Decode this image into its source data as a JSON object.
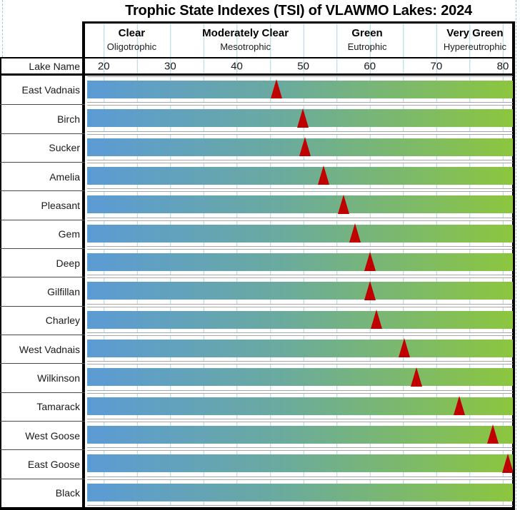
{
  "title": "Trophic State Indexes (TSI) of VLAWMO Lakes: 2024",
  "header": {
    "lake_name_label": "Lake Name",
    "categories": [
      {
        "label": "Clear",
        "sublabel": "Oligotrophic",
        "center_tsi": 24.2
      },
      {
        "label": "Moderately Clear",
        "sublabel": "Mesotrophic",
        "center_tsi": 41.3
      },
      {
        "label": "Green",
        "sublabel": "Eutrophic",
        "center_tsi": 59.6
      },
      {
        "label": "Very Green",
        "sublabel": "Hypereutrophic",
        "center_tsi": 75.8
      }
    ]
  },
  "chart_data": {
    "type": "scatter",
    "title": "Trophic State Indexes (TSI) of VLAWMO Lakes: 2024",
    "xlabel": "TSI",
    "x_ticks": [
      20,
      30,
      40,
      50,
      60,
      70,
      80
    ],
    "x_min": 17.5,
    "x_max": 81.5,
    "gridline_step": 5,
    "grid": true,
    "categories": [
      "East Vadnais",
      "Birch",
      "Sucker",
      "Amelia",
      "Pleasant",
      "Gem",
      "Deep",
      "Gilfillan",
      "Charley",
      "West Vadnais",
      "Wilkinson",
      "Tamarack",
      "West Goose",
      "East Goose",
      "Black"
    ],
    "values": [
      46,
      49.9,
      50.3,
      53,
      56,
      57.8,
      60,
      60,
      61,
      65.2,
      67,
      73.4,
      78.5,
      80.8,
      null
    ],
    "marker": {
      "shape": "triangle-up",
      "color": "#c00000"
    },
    "scale_bar_gradient": {
      "left": "#5b9bd5",
      "right": "#8cc63e"
    },
    "gridline_color": "#60b6c0",
    "border_color": "#000000"
  }
}
